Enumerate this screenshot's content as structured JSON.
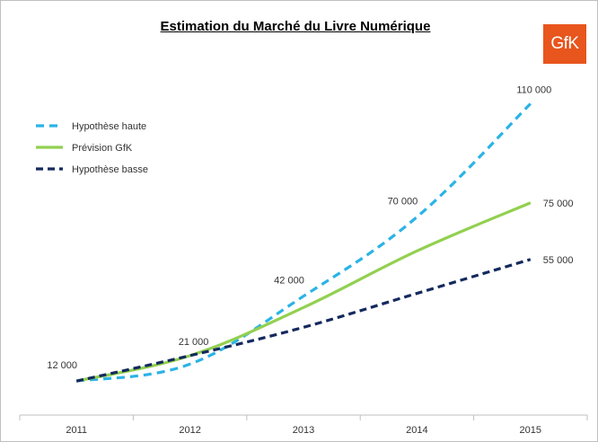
{
  "chart_data": {
    "type": "line",
    "title": "Estimation du Marché du Livre Numérique",
    "categories": [
      "2011",
      "2012",
      "2013",
      "2014",
      "2015"
    ],
    "series": [
      {
        "name": "Hypothèse haute",
        "values": [
          12000,
          18000,
          42000,
          70000,
          110000
        ],
        "color": "#2bb3e6",
        "dash": "dashed"
      },
      {
        "name": "Prévision GfK",
        "values": [
          12000,
          21000,
          38000,
          58000,
          75000
        ],
        "color": "#92d050",
        "dash": "solid"
      },
      {
        "name": "Hypothèse basse",
        "values": [
          12000,
          21000,
          31000,
          43000,
          55000
        ],
        "color": "#14295e",
        "dash": "dashed"
      }
    ],
    "data_labels": [
      {
        "text": "12 000",
        "category": "2011",
        "value": 12000,
        "anchor": "above-left"
      },
      {
        "text": "21 000",
        "category": "2012",
        "value": 21000,
        "anchor": "above"
      },
      {
        "text": "42 000",
        "category": "2013",
        "value": 42000,
        "anchor": "above-left"
      },
      {
        "text": "70 000",
        "category": "2014",
        "value": 70000,
        "anchor": "above-left"
      },
      {
        "text": "110 000",
        "category": "2015",
        "value": 110000,
        "anchor": "above"
      },
      {
        "text": "75 000",
        "category": "2015",
        "value": 75000,
        "anchor": "right"
      },
      {
        "text": "55 000",
        "category": "2015",
        "value": 55000,
        "anchor": "right"
      }
    ],
    "ylim": [
      0,
      120000
    ],
    "legend_position": "top-left",
    "grid": false,
    "xlabel": "",
    "ylabel": ""
  },
  "logo": {
    "text": "GfK",
    "color": "#e8551d"
  },
  "axis_color": "#bfbfbf"
}
